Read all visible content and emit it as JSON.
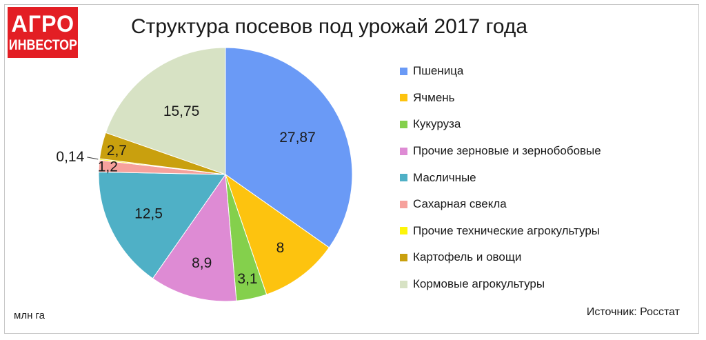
{
  "logo": {
    "line1": "АГРО",
    "line2": "ИНВЕСТОР",
    "color": "#e31e24"
  },
  "title": "Структура посевов под урожай 2017 года",
  "unit_label": "млн га",
  "source_label": "Источник: Росстат",
  "chart_data": {
    "type": "pie",
    "title": "Структура посевов под урожай 2017 года",
    "unit": "млн га",
    "legend_position": "right",
    "slices": [
      {
        "name": "Пшеница",
        "value": 27.87,
        "label": "27,87",
        "color": "#6a9af6"
      },
      {
        "name": "Ячмень",
        "value": 8,
        "label": "8",
        "color": "#fdc30f"
      },
      {
        "name": "Кукуруза",
        "value": 3.1,
        "label": "3,1",
        "color": "#84d04c"
      },
      {
        "name": "Прочие зерновые и зернобобовые",
        "value": 8.9,
        "label": "8,9",
        "color": "#de8bd4"
      },
      {
        "name": "Масличные",
        "value": 12.5,
        "label": "12,5",
        "color": "#4fb0c6"
      },
      {
        "name": "Сахарная свекла",
        "value": 1.2,
        "label": "1,2",
        "color": "#f6a19c"
      },
      {
        "name": "Прочие технические агрокультуры",
        "value": 0.14,
        "label": "0,14",
        "color": "#fdf50a"
      },
      {
        "name": "Картофель и овощи",
        "value": 2.7,
        "label": "2,7",
        "color": "#c9a00e"
      },
      {
        "name": "Кормовые агрокультуры",
        "value": 15.75,
        "label": "15,75",
        "color": "#d7e2c4"
      }
    ]
  }
}
